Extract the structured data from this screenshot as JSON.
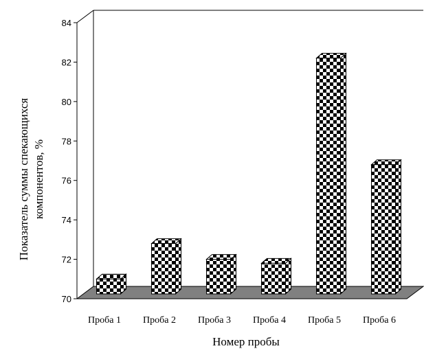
{
  "chart_data": {
    "type": "bar",
    "style": "3d-column-checkered",
    "categories": [
      "Проба 1",
      "Проба 2",
      "Проба 3",
      "Проба 4",
      "Проба 5",
      "Проба 6"
    ],
    "series": [
      {
        "values": [
          71.0,
          72.8,
          72.0,
          71.8,
          82.2,
          76.8
        ]
      }
    ],
    "title": "",
    "xlabel": "Номер пробы",
    "ylabel_lines": [
      "Показатель суммы спекающихся",
      "компонентов, %"
    ],
    "ylim": [
      70,
      84
    ],
    "yticks": [
      70,
      72,
      74,
      76,
      78,
      80,
      82,
      84
    ],
    "grid": false,
    "legend": "none",
    "colors": {
      "floor": "#808080",
      "bar_dark": "#000000",
      "bar_light": "#ffffff"
    }
  }
}
